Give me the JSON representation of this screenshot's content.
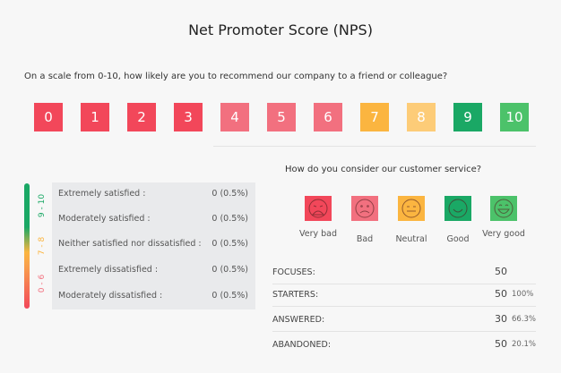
{
  "title": "Net Promoter Score (NPS)",
  "question": "On a scale from 0-10, how likely are you to recommend our company to a friend or colleague?",
  "scale": [
    {
      "label": "0",
      "color": "#f2475a"
    },
    {
      "label": "1",
      "color": "#f2475a"
    },
    {
      "label": "2",
      "color": "#f2475a"
    },
    {
      "label": "3",
      "color": "#f2475a"
    },
    {
      "label": "4",
      "color": "#f2707f"
    },
    {
      "label": "5",
      "color": "#f2707f"
    },
    {
      "label": "6",
      "color": "#f2707f"
    },
    {
      "label": "7",
      "color": "#fbb540"
    },
    {
      "label": "8",
      "color": "#fdcc78"
    },
    {
      "label": "9",
      "color": "#1aa865"
    },
    {
      "label": "10",
      "color": "#4cc26a"
    }
  ],
  "ranges": {
    "promoters": "9 - 10",
    "passives": "7 - 8",
    "detractors": "0 - 6"
  },
  "satisfaction": [
    {
      "label": "Extremely satisfied :",
      "value": "0 (0.5%)"
    },
    {
      "label": "Moderately satisfied :",
      "value": "0 (0.5%)"
    },
    {
      "label": "Neither satisfied nor dissatisfied :",
      "value": "0 (0.5%)"
    },
    {
      "label": "Extremely dissatisfied :",
      "value": "0 (0.5%)"
    },
    {
      "label": "Moderately dissatisfied :",
      "value": "0 (0.5%)"
    }
  ],
  "service_question": "How do you consider our customer service?",
  "faces": [
    {
      "label": "Very bad",
      "icon": "very-bad-face-icon",
      "color": "#f2475a"
    },
    {
      "label": "Bad",
      "icon": "bad-face-icon",
      "color": "#f2707f"
    },
    {
      "label": "Neutral",
      "icon": "neutral-face-icon",
      "color": "#fbb540"
    },
    {
      "label": "Good",
      "icon": "good-face-icon",
      "color": "#1aa865"
    },
    {
      "label": "Very good",
      "icon": "very-good-face-icon",
      "color": "#4cc26a"
    }
  ],
  "stats": [
    {
      "label": "FOCUSES:",
      "value": "50",
      "pct": ""
    },
    {
      "label": "STARTERS:",
      "value": "50",
      "pct": "100%"
    },
    {
      "label": "ANSWERED:",
      "value": "30",
      "pct": "66.3%"
    },
    {
      "label": "ABANDONED:",
      "value": "50",
      "pct": "20.1%"
    }
  ]
}
